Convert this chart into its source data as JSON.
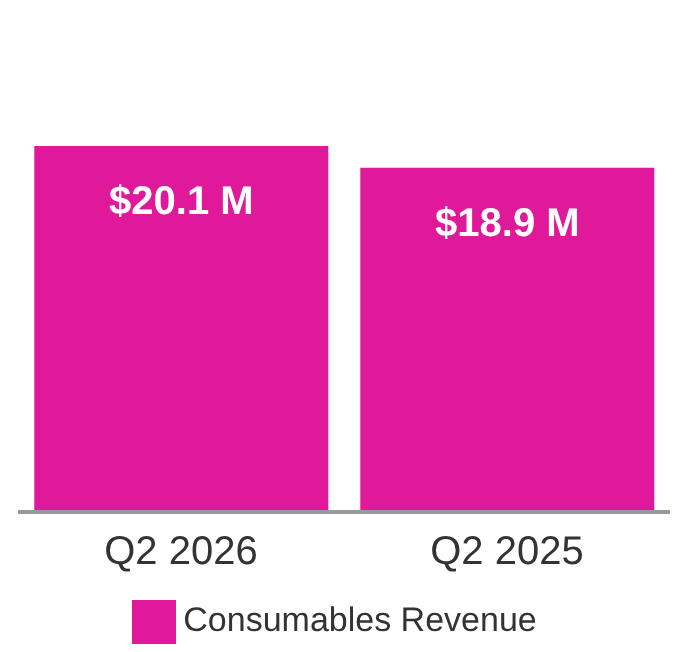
{
  "chart_data": {
    "type": "bar",
    "categories": [
      "Q2 2026",
      "Q2 2025"
    ],
    "series": [
      {
        "name": "Consumables Revenue",
        "color": "#e0189a",
        "values": [
          20.1,
          18.9
        ],
        "value_labels": [
          "$20.1 M",
          "$18.9 M"
        ]
      }
    ],
    "legend": "bottom"
  }
}
